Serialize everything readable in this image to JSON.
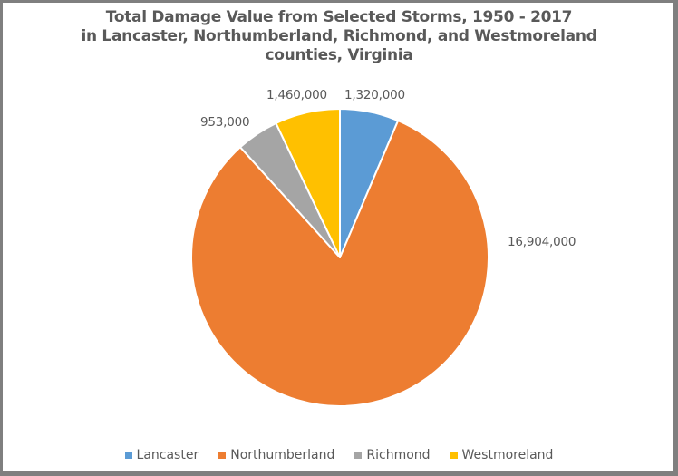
{
  "chart_data": {
    "type": "pie",
    "title": "Total Damage Value from Selected Storms, 1950 - 2017 in Lancaster, Northumberland, Richmond, and Westmoreland counties, Virginia",
    "title_lines": [
      "Total Damage Value from Selected Storms, 1950 - 2017",
      "in Lancaster, Northumberland, Richmond, and Westmoreland",
      "counties, Virginia"
    ],
    "categories": [
      "Lancaster",
      "Northumberland",
      "Richmond",
      "Westmoreland"
    ],
    "values": [
      1320000,
      16904000,
      953000,
      1460000
    ],
    "labels": [
      "1,320,000",
      "16,904,000",
      "953,000",
      "1,460,000"
    ],
    "colors": [
      "#5b9bd5",
      "#ed7d31",
      "#a5a5a5",
      "#ffc000"
    ],
    "legend_position": "bottom",
    "start_angle_deg": 0,
    "direction": "clockwise"
  }
}
